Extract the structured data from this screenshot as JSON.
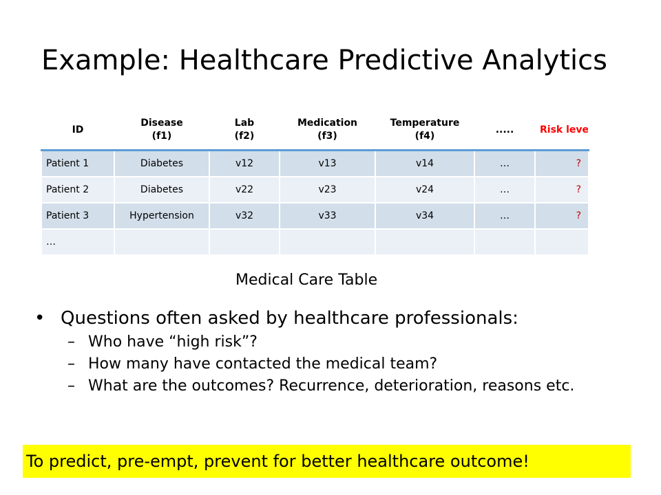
{
  "title": "Example: Healthcare Predictive Analytics",
  "table": {
    "headers": [
      {
        "line1": "ID",
        "line2": ""
      },
      {
        "line1": "Disease",
        "line2": "(f1)"
      },
      {
        "line1": "Lab",
        "line2": "(f2)"
      },
      {
        "line1": "Medication",
        "line2": "(f3)"
      },
      {
        "line1": "Temperature",
        "line2": "(f4)"
      },
      {
        "line1": ".....",
        "line2": ""
      },
      {
        "line1": "Risk level",
        "line2": ""
      }
    ],
    "rows": [
      [
        "Patient 1",
        "Diabetes",
        "v12",
        "v13",
        "v14",
        "…",
        "?"
      ],
      [
        "Patient 2",
        "Diabetes",
        "v22",
        "v23",
        "v24",
        "…",
        "?"
      ],
      [
        "Patient 3",
        "Hypertension",
        "v32",
        "v33",
        "v34",
        "…",
        "?"
      ],
      [
        "…",
        "",
        "",
        "",
        "",
        "",
        ""
      ]
    ],
    "caption": "Medical Care Table",
    "risk_color": "#ff0000",
    "header_rule_color": "#5b9bd5",
    "row_colors": [
      "#d2dee9",
      "#eaf0f6"
    ]
  },
  "bullets": {
    "main": "Questions often asked by healthcare professionals:",
    "sub": [
      "Who have “high risk”?",
      "How many have contacted the medical team?",
      "What are the outcomes? Recurrence, deterioration, reasons etc."
    ]
  },
  "banner": {
    "text": "To predict, pre-empt,  prevent for better healthcare outcome!",
    "color": "#ffff00"
  }
}
